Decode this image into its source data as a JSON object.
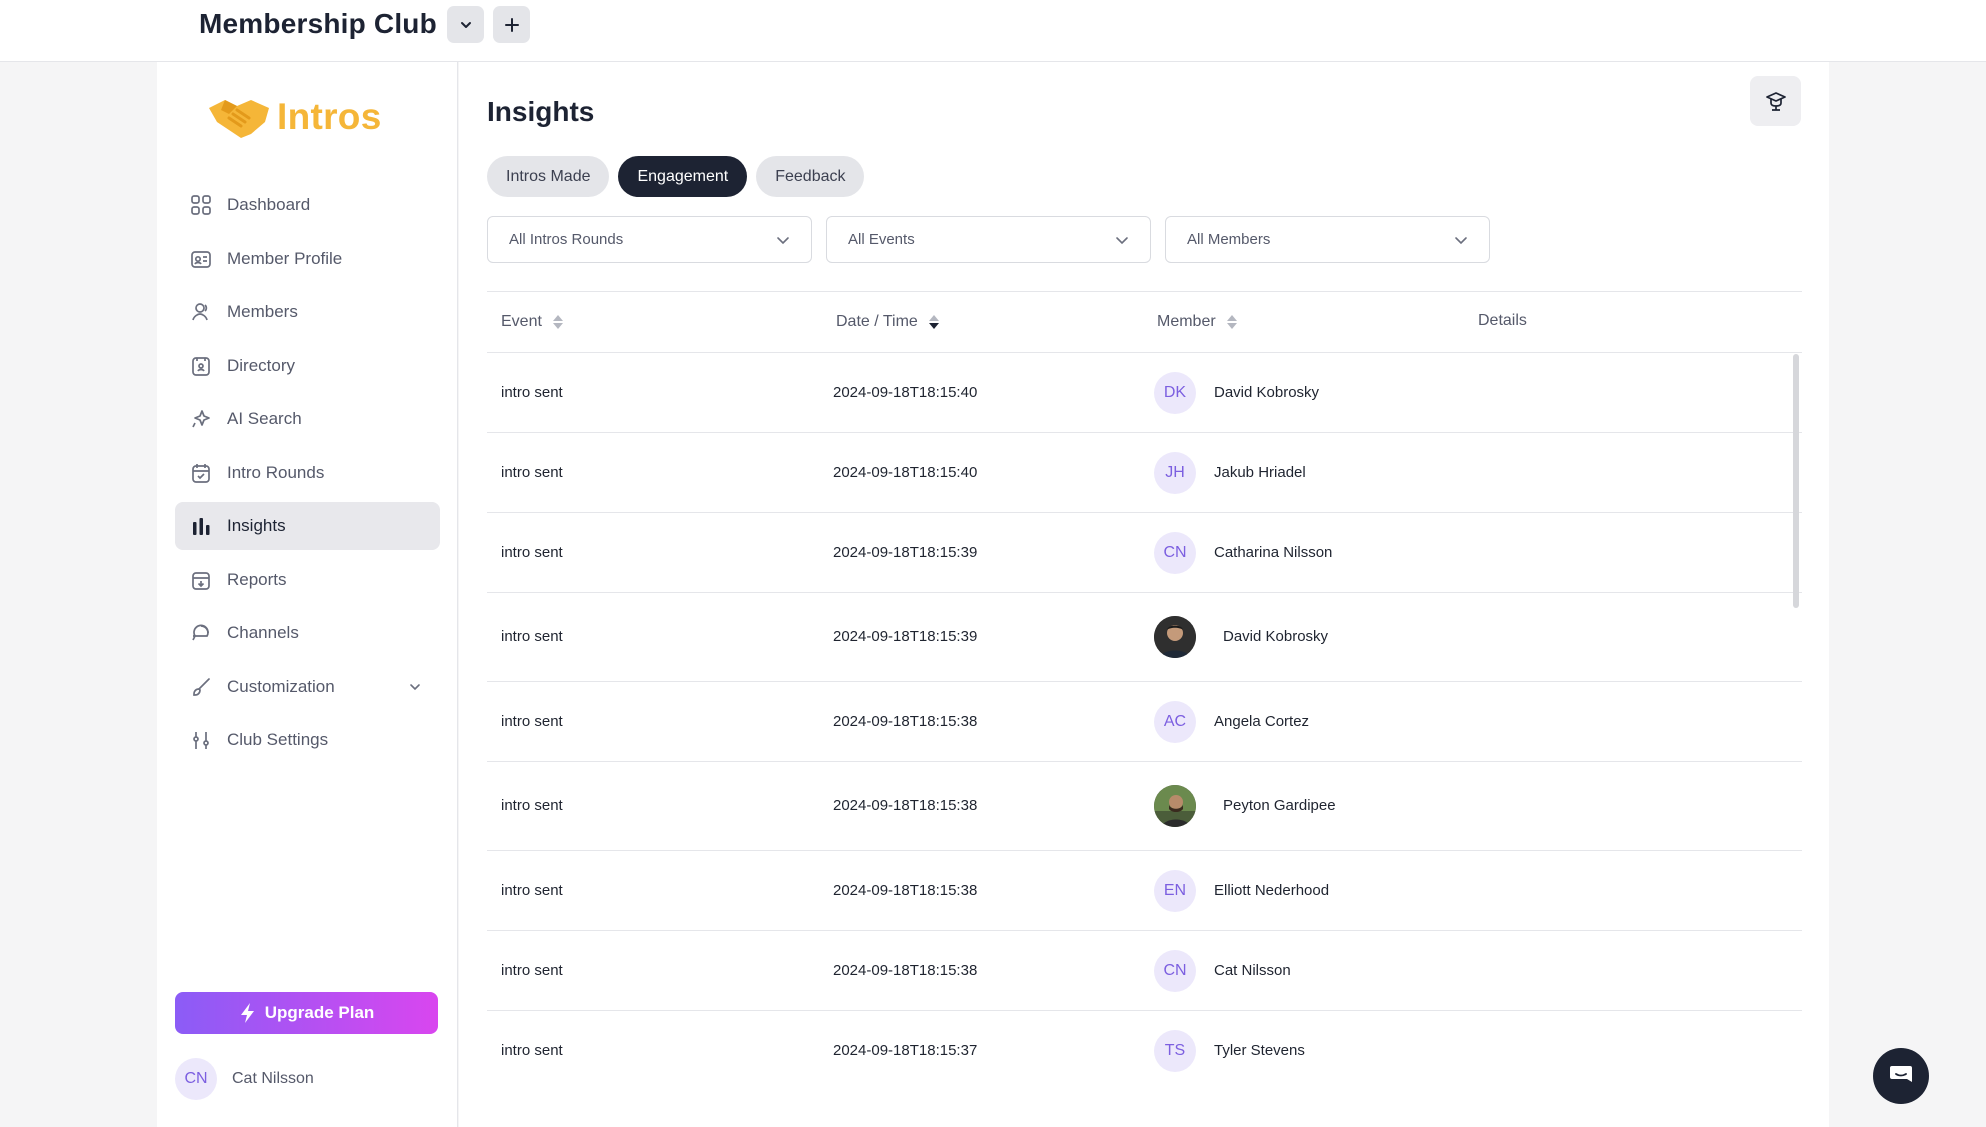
{
  "header": {
    "club_name": "Membership Club"
  },
  "sidebar": {
    "logo_text": "Intros",
    "items": [
      {
        "label": "Dashboard",
        "icon": "dashboard-icon"
      },
      {
        "label": "Member Profile",
        "icon": "id-card-icon"
      },
      {
        "label": "Members",
        "icon": "members-icon"
      },
      {
        "label": "Directory",
        "icon": "directory-icon"
      },
      {
        "label": "AI Search",
        "icon": "sparkle-icon"
      },
      {
        "label": "Intro Rounds",
        "icon": "calendar-icon"
      },
      {
        "label": "Insights",
        "icon": "bar-chart-icon",
        "active": true
      },
      {
        "label": "Reports",
        "icon": "reports-icon"
      },
      {
        "label": "Channels",
        "icon": "chat-icon"
      },
      {
        "label": "Customization",
        "icon": "brush-icon"
      },
      {
        "label": "Club Settings",
        "icon": "sliders-icon"
      }
    ],
    "upgrade_label": "Upgrade Plan",
    "user": {
      "initials": "CN",
      "name": "Cat Nilsson"
    }
  },
  "main": {
    "title": "Insights",
    "tabs": [
      {
        "label": "Intros Made"
      },
      {
        "label": "Engagement",
        "active": true
      },
      {
        "label": "Feedback"
      }
    ],
    "filters": [
      {
        "value": "All Intros Rounds"
      },
      {
        "value": "All Events"
      },
      {
        "value": "All Members"
      }
    ],
    "table": {
      "columns": [
        "Event",
        "Date / Time",
        "Member",
        "Details"
      ],
      "rows": [
        {
          "event": "intro sent",
          "datetime": "2024-09-18T18:15:40",
          "initials": "DK",
          "member": "David Kobrosky"
        },
        {
          "event": "intro sent",
          "datetime": "2024-09-18T18:15:40",
          "initials": "JH",
          "member": "Jakub Hriadel"
        },
        {
          "event": "intro sent",
          "datetime": "2024-09-18T18:15:39",
          "initials": "CN",
          "member": "Catharina Nilsson"
        },
        {
          "event": "intro sent",
          "datetime": "2024-09-18T18:15:39",
          "initials": "",
          "member": "David Kobrosky"
        },
        {
          "event": "intro sent",
          "datetime": "2024-09-18T18:15:38",
          "initials": "AC",
          "member": "Angela Cortez"
        },
        {
          "event": "intro sent",
          "datetime": "2024-09-18T18:15:38",
          "initials": "",
          "member": "Peyton Gardipee"
        },
        {
          "event": "intro sent",
          "datetime": "2024-09-18T18:15:38",
          "initials": "EN",
          "member": "Elliott Nederhood"
        },
        {
          "event": "intro sent",
          "datetime": "2024-09-18T18:15:38",
          "initials": "CN",
          "member": "Cat Nilsson"
        },
        {
          "event": "intro sent",
          "datetime": "2024-09-18T18:15:37",
          "initials": "TS",
          "member": "Tyler Stevens"
        }
      ]
    }
  },
  "colors": {
    "accent": "#1d2333",
    "brand": "#f5b638",
    "avatar_bg": "#ece8fb",
    "avatar_text": "#7c5fe0"
  }
}
